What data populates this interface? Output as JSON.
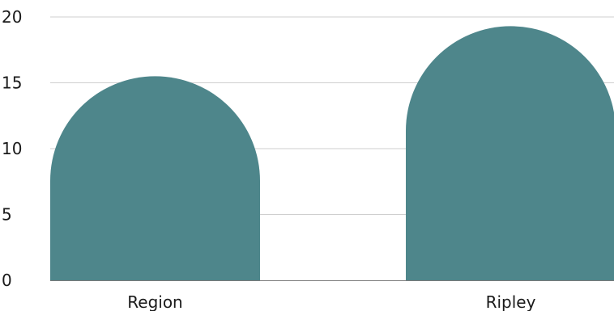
{
  "chart_data": {
    "type": "bar",
    "bar_shape": "rounded-top",
    "categories": [
      "Region",
      "Ripley"
    ],
    "values": [
      15.5,
      19.3
    ],
    "ylim": [
      0,
      20
    ],
    "yticks": [
      0,
      5,
      10,
      15,
      20
    ],
    "grid": true,
    "title": "",
    "xlabel": "",
    "ylabel": "",
    "bar_color": "#4e868b"
  }
}
